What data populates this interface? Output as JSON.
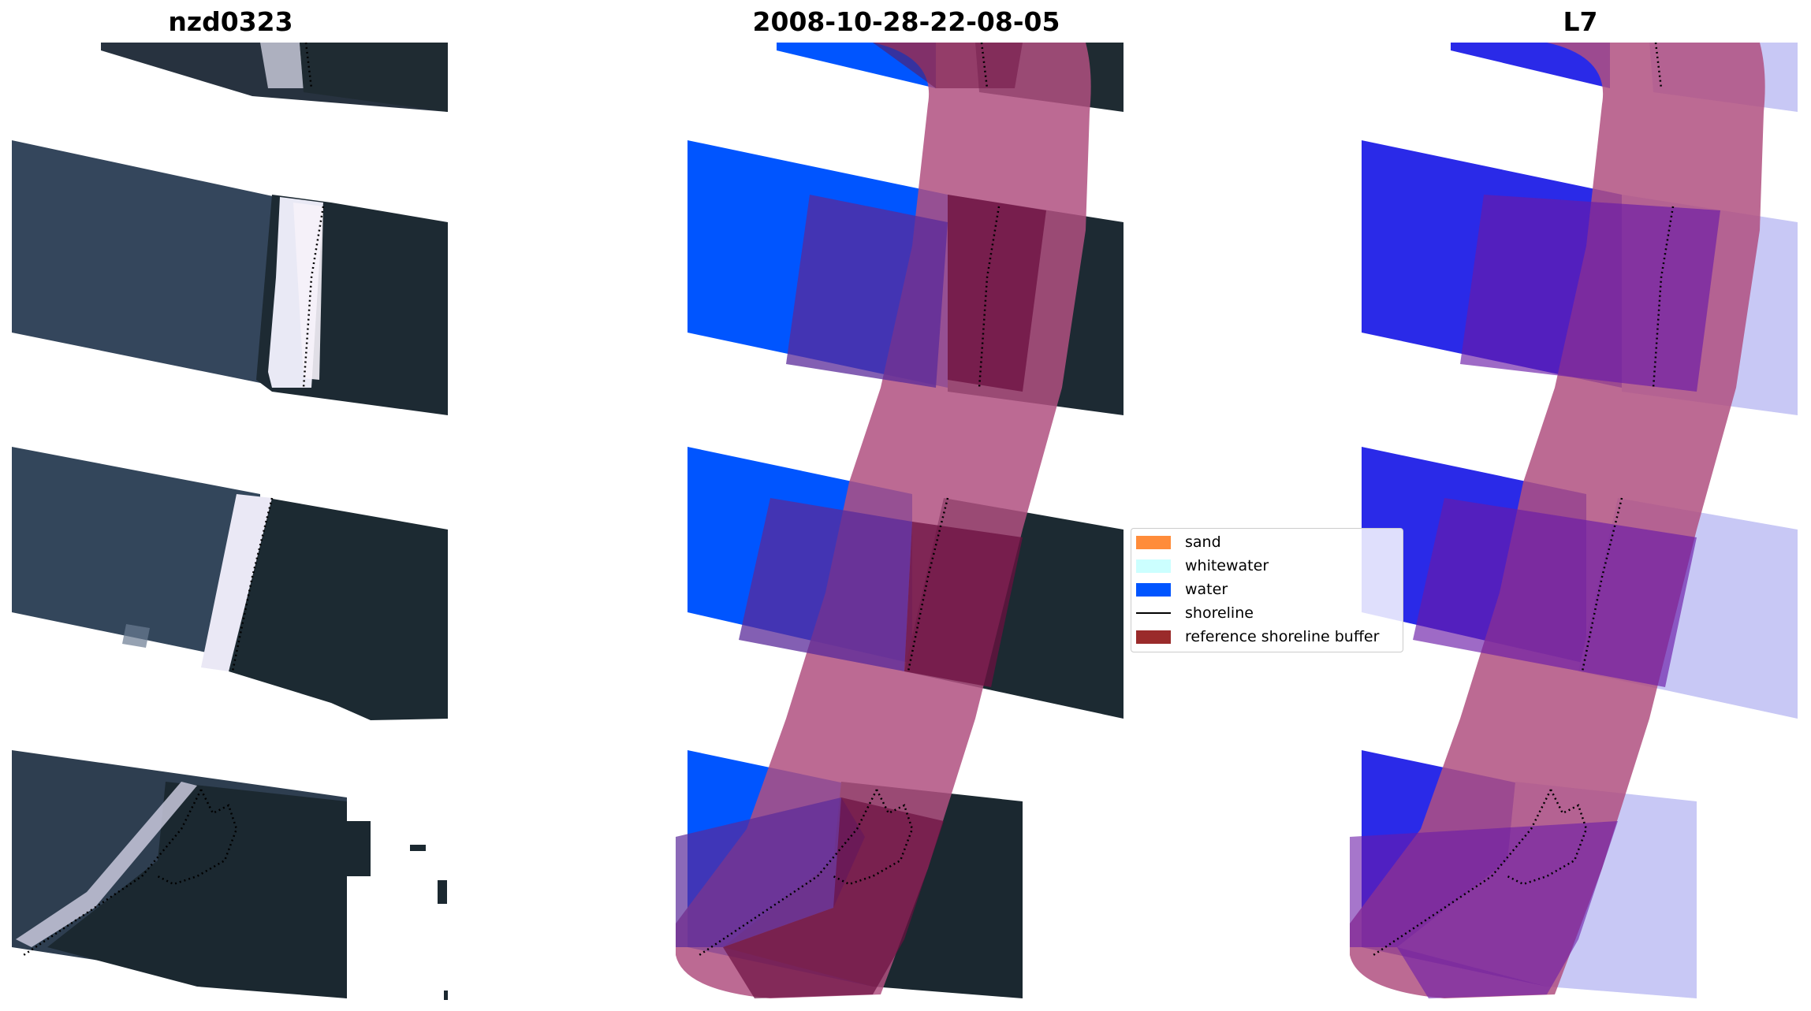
{
  "panels": {
    "left": {
      "title": "nzd0323"
    },
    "middle": {
      "title": "2008-10-28-22-08-05"
    },
    "right": {
      "title": "L7"
    }
  },
  "legend": {
    "items": [
      {
        "label": "sand",
        "kind": "patch",
        "color": "#ff8c3a"
      },
      {
        "label": "whitewater",
        "kind": "patch",
        "color": "#ccffff"
      },
      {
        "label": "water",
        "kind": "patch",
        "color": "#0055ff"
      },
      {
        "label": "shoreline",
        "kind": "line",
        "color": "#000000"
      },
      {
        "label": "reference shoreline buffer",
        "kind": "patch",
        "color": "#9a2b2b"
      }
    ]
  },
  "colors": {
    "land": "#1d2a33",
    "water_rgb": "#34485c",
    "whitewater_rgb": "#e8eaf5",
    "classified_water": "#0055ff",
    "buffer_overlay": "#b05080",
    "water_index_blue": "#2a2ae8",
    "water_index_light": "#c8c8f5"
  }
}
